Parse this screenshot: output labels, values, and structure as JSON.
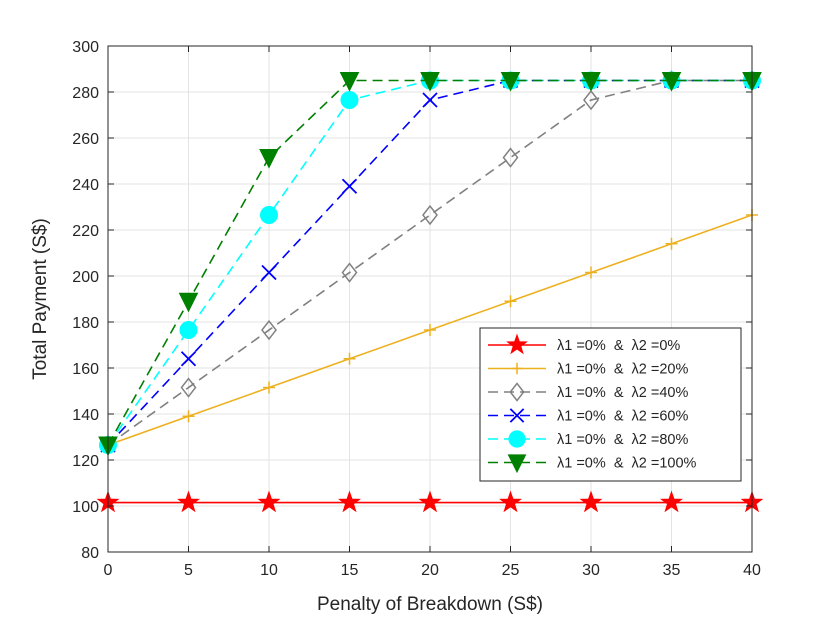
{
  "chart_data": {
    "type": "line",
    "title": "",
    "xlabel": "Penalty of Breakdown (S$)",
    "ylabel": "Total Payment (S$)",
    "xlim": [
      0,
      40
    ],
    "ylim": [
      80,
      300
    ],
    "xticks": [
      0,
      5,
      10,
      15,
      20,
      25,
      30,
      35,
      40
    ],
    "yticks": [
      80,
      100,
      120,
      140,
      160,
      180,
      200,
      220,
      240,
      260,
      280,
      300
    ],
    "grid": true,
    "legend_position": "middle-right",
    "x": [
      0,
      5,
      10,
      15,
      20,
      25,
      30,
      35,
      40
    ],
    "series": [
      {
        "name": "λ1 =0%  &  λ2 =0%",
        "color": "#ff0000",
        "dash": "solid",
        "marker": "star",
        "values": [
          101.5,
          101.5,
          101.5,
          101.5,
          101.5,
          101.5,
          101.5,
          101.5,
          101.5
        ]
      },
      {
        "name": "λ1 =0%  &  λ2 =20%",
        "color": "#edb120",
        "dash": "solid",
        "marker": "plus",
        "values": [
          126.5,
          139,
          151.5,
          164,
          176.5,
          189,
          201.5,
          214,
          226.5
        ]
      },
      {
        "name": "λ1 =0%  &  λ2 =40%",
        "color": "#808080",
        "dash": "dashed",
        "marker": "diamond",
        "values": [
          126.5,
          151.5,
          176.5,
          201.5,
          226.5,
          251.5,
          276.5,
          285,
          285
        ]
      },
      {
        "name": "λ1 =0%  &  λ2 =60%",
        "color": "#0000ff",
        "dash": "dashed",
        "marker": "x",
        "values": [
          126.5,
          164,
          201.5,
          239,
          276.5,
          285,
          285,
          285,
          285
        ]
      },
      {
        "name": "λ1 =0%  &  λ2 =80%",
        "color": "#00ffff",
        "dash": "dashed",
        "marker": "circle",
        "values": [
          126.5,
          176.5,
          226.5,
          276.5,
          285,
          285,
          285,
          285,
          285
        ]
      },
      {
        "name": "λ1 =0%  &  λ2 =100%",
        "color": "#008000",
        "dash": "dashed",
        "marker": "triangle-down",
        "values": [
          126.5,
          189,
          251.5,
          285,
          285,
          285,
          285,
          285,
          285
        ]
      }
    ]
  }
}
